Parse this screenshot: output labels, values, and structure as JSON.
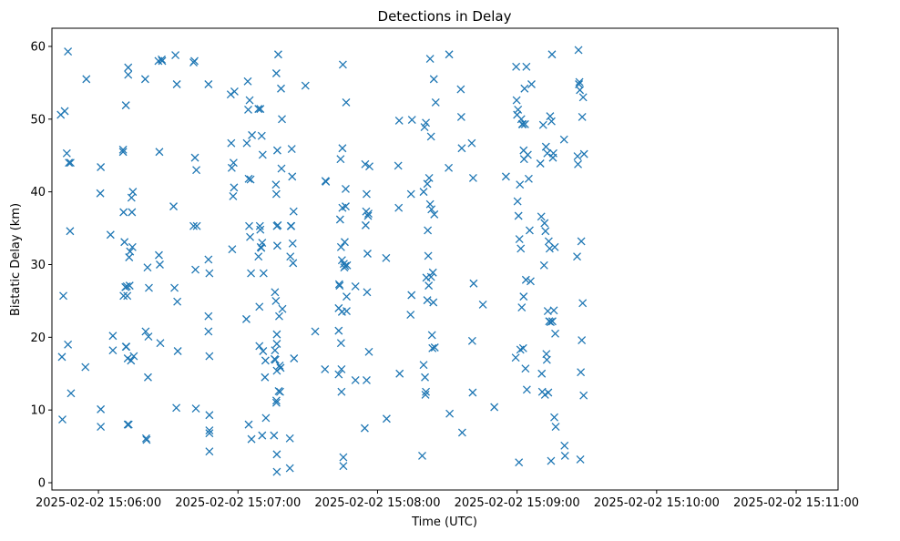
{
  "chart_data": {
    "type": "scatter",
    "title": "Detections in Delay",
    "xlabel": "Time (UTC)",
    "ylabel": "Bistatic Delay (km)",
    "marker": "x",
    "color": "#1f77b4",
    "x_unit": "seconds since 2025-02-02 15:06:00",
    "xlim": [
      -20,
      318
    ],
    "ylim": [
      -1.0,
      62.5
    ],
    "x_ticks": [
      {
        "value": 0,
        "label": "2025-02-02 15:06:00"
      },
      {
        "value": 60,
        "label": "2025-02-02 15:07:00"
      },
      {
        "value": 120,
        "label": "2025-02-02 15:08:00"
      },
      {
        "value": 180,
        "label": "2025-02-02 15:09:00"
      },
      {
        "value": 240,
        "label": "2025-02-02 15:10:00"
      },
      {
        "value": 300,
        "label": "2025-02-02 15:11:00"
      }
    ],
    "y_ticks": [
      {
        "value": 0,
        "label": "0"
      },
      {
        "value": 10,
        "label": "10"
      },
      {
        "value": 20,
        "label": "20"
      },
      {
        "value": 30,
        "label": "30"
      },
      {
        "value": 40,
        "label": "40"
      },
      {
        "value": 50,
        "label": "50"
      },
      {
        "value": 60,
        "label": "60"
      }
    ],
    "points": [
      [
        -16.2,
        50.6
      ],
      [
        -15.7,
        17.3
      ],
      [
        -15.5,
        8.7
      ],
      [
        -15.1,
        25.7
      ],
      [
        -14.5,
        51.1
      ],
      [
        -13.6,
        45.3
      ],
      [
        -13.1,
        59.3
      ],
      [
        -13.1,
        19.0
      ],
      [
        -12.7,
        44.0
      ],
      [
        -12.2,
        34.6
      ],
      [
        -12.0,
        44.0
      ],
      [
        -11.8,
        12.3
      ],
      [
        -5.2,
        55.5
      ],
      [
        -5.6,
        15.9
      ],
      [
        0.8,
        39.8
      ],
      [
        1.0,
        10.1
      ],
      [
        1.0,
        7.7
      ],
      [
        1.0,
        43.4
      ],
      [
        5.2,
        34.1
      ],
      [
        6.2,
        20.2
      ],
      [
        6.2,
        18.2
      ],
      [
        10.6,
        45.5
      ],
      [
        10.6,
        45.8
      ],
      [
        10.8,
        37.2
      ],
      [
        10.8,
        25.7
      ],
      [
        11.2,
        33.1
      ],
      [
        11.6,
        26.9
      ],
      [
        11.8,
        18.7
      ],
      [
        11.8,
        51.9
      ],
      [
        12.0,
        18.7
      ],
      [
        12.2,
        27.0
      ],
      [
        12.4,
        25.7
      ],
      [
        12.6,
        17.1
      ],
      [
        12.6,
        8.0
      ],
      [
        12.8,
        56.1
      ],
      [
        12.8,
        57.1
      ],
      [
        13.0,
        8.0
      ],
      [
        13.2,
        31.0
      ],
      [
        13.4,
        27.1
      ],
      [
        13.6,
        31.8
      ],
      [
        14.0,
        16.8
      ],
      [
        14.2,
        39.2
      ],
      [
        14.4,
        37.2
      ],
      [
        14.6,
        32.4
      ],
      [
        14.8,
        40.0
      ],
      [
        15.2,
        17.4
      ],
      [
        20.1,
        55.5
      ],
      [
        20.3,
        20.8
      ],
      [
        20.5,
        6.1
      ],
      [
        20.7,
        5.9
      ],
      [
        21.1,
        29.6
      ],
      [
        21.3,
        14.5
      ],
      [
        21.5,
        20.1
      ],
      [
        21.7,
        26.8
      ],
      [
        25.8,
        58.0
      ],
      [
        26.0,
        31.3
      ],
      [
        26.2,
        45.5
      ],
      [
        26.4,
        30.0
      ],
      [
        26.6,
        19.2
      ],
      [
        27.2,
        58.2
      ],
      [
        27.4,
        58.0
      ],
      [
        32.3,
        38.0
      ],
      [
        32.7,
        26.8
      ],
      [
        33.1,
        58.8
      ],
      [
        33.5,
        10.3
      ],
      [
        33.7,
        54.8
      ],
      [
        33.9,
        24.9
      ],
      [
        34.1,
        18.1
      ],
      [
        40.9,
        57.8
      ],
      [
        40.9,
        35.3
      ],
      [
        41.3,
        58.0
      ],
      [
        41.5,
        44.7
      ],
      [
        41.7,
        29.3
      ],
      [
        41.9,
        10.2
      ],
      [
        42.1,
        43.0
      ],
      [
        42.3,
        35.3
      ],
      [
        47.3,
        22.9
      ],
      [
        47.3,
        20.8
      ],
      [
        47.3,
        54.8
      ],
      [
        47.3,
        30.7
      ],
      [
        47.7,
        28.8
      ],
      [
        47.7,
        17.4
      ],
      [
        47.7,
        9.3
      ],
      [
        47.7,
        7.2
      ],
      [
        47.7,
        6.8
      ],
      [
        47.7,
        4.3
      ],
      [
        56.9,
        53.4
      ],
      [
        57.1,
        46.7
      ],
      [
        57.3,
        43.3
      ],
      [
        57.5,
        32.1
      ],
      [
        57.9,
        39.4
      ],
      [
        58.1,
        44.0
      ],
      [
        58.3,
        40.6
      ],
      [
        58.5,
        53.8
      ],
      [
        63.6,
        22.5
      ],
      [
        63.8,
        46.7
      ],
      [
        64.2,
        55.2
      ],
      [
        64.4,
        51.3
      ],
      [
        64.6,
        41.8
      ],
      [
        64.6,
        8.0
      ],
      [
        64.8,
        35.3
      ],
      [
        65.0,
        52.6
      ],
      [
        65.2,
        33.8
      ],
      [
        65.4,
        41.7
      ],
      [
        65.6,
        28.8
      ],
      [
        65.8,
        6.0
      ],
      [
        66.0,
        47.8
      ],
      [
        68.8,
        31.1
      ],
      [
        68.8,
        51.4
      ],
      [
        69.2,
        18.8
      ],
      [
        69.2,
        24.2
      ],
      [
        69.4,
        35.3
      ],
      [
        69.6,
        34.8
      ],
      [
        69.6,
        51.4
      ],
      [
        69.8,
        32.4
      ],
      [
        70.0,
        32.3
      ],
      [
        70.2,
        47.7
      ],
      [
        70.4,
        33.0
      ],
      [
        70.4,
        6.5
      ],
      [
        70.6,
        45.1
      ],
      [
        70.8,
        18.1
      ],
      [
        71.0,
        28.8
      ],
      [
        71.6,
        14.5
      ],
      [
        71.8,
        16.8
      ],
      [
        72.0,
        8.9
      ],
      [
        75.5,
        6.5
      ],
      [
        75.7,
        17.0
      ],
      [
        75.9,
        18.2
      ],
      [
        75.9,
        26.2
      ],
      [
        76.1,
        16.9
      ],
      [
        76.3,
        41.0
      ],
      [
        76.3,
        25.0
      ],
      [
        76.5,
        11.0
      ],
      [
        76.5,
        11.3
      ],
      [
        76.5,
        39.7
      ],
      [
        76.5,
        56.3
      ],
      [
        76.7,
        35.3
      ],
      [
        76.7,
        20.4
      ],
      [
        76.7,
        19.1
      ],
      [
        76.7,
        15.4
      ],
      [
        76.7,
        3.9
      ],
      [
        76.7,
        1.5
      ],
      [
        76.9,
        45.7
      ],
      [
        76.9,
        32.6
      ],
      [
        77.1,
        35.4
      ],
      [
        77.3,
        58.9
      ],
      [
        77.5,
        12.6
      ],
      [
        77.7,
        22.9
      ],
      [
        77.9,
        16.1
      ],
      [
        78.1,
        12.5
      ],
      [
        78.3,
        15.8
      ],
      [
        78.5,
        54.2
      ],
      [
        78.7,
        43.2
      ],
      [
        78.9,
        50.0
      ],
      [
        79.1,
        23.9
      ],
      [
        82.3,
        6.1
      ],
      [
        82.3,
        2.0
      ],
      [
        82.5,
        31.1
      ],
      [
        82.7,
        35.3
      ],
      [
        82.9,
        35.3
      ],
      [
        83.1,
        45.9
      ],
      [
        83.3,
        42.1
      ],
      [
        83.5,
        32.9
      ],
      [
        83.7,
        30.2
      ],
      [
        83.9,
        37.3
      ],
      [
        84.1,
        17.1
      ],
      [
        89.0,
        54.6
      ],
      [
        93.2,
        20.8
      ],
      [
        97.4,
        15.6
      ],
      [
        97.6,
        41.5
      ],
      [
        97.8,
        41.4
      ],
      [
        103.3,
        24.0
      ],
      [
        103.3,
        20.9
      ],
      [
        103.3,
        14.9
      ],
      [
        103.5,
        27.3
      ],
      [
        103.7,
        27.1
      ],
      [
        103.9,
        36.2
      ],
      [
        104.1,
        44.5
      ],
      [
        104.3,
        32.4
      ],
      [
        104.3,
        19.2
      ],
      [
        104.5,
        15.6
      ],
      [
        104.5,
        12.5
      ],
      [
        104.7,
        30.6
      ],
      [
        104.7,
        23.5
      ],
      [
        104.9,
        37.8
      ],
      [
        104.9,
        46.0
      ],
      [
        105.1,
        57.5
      ],
      [
        105.3,
        3.5
      ],
      [
        105.3,
        2.3
      ],
      [
        105.5,
        30.1
      ],
      [
        105.7,
        29.6
      ],
      [
        105.9,
        33.1
      ],
      [
        106.1,
        29.8
      ],
      [
        106.3,
        38.0
      ],
      [
        106.3,
        40.4
      ],
      [
        106.5,
        52.3
      ],
      [
        106.7,
        23.6
      ],
      [
        106.7,
        25.6
      ],
      [
        106.9,
        29.9
      ],
      [
        110.5,
        27.0
      ],
      [
        110.5,
        14.1
      ],
      [
        114.5,
        7.5
      ],
      [
        114.7,
        43.8
      ],
      [
        114.9,
        35.4
      ],
      [
        115.1,
        37.3
      ],
      [
        115.3,
        39.7
      ],
      [
        115.3,
        14.1
      ],
      [
        115.5,
        26.2
      ],
      [
        115.7,
        31.5
      ],
      [
        115.9,
        36.7
      ],
      [
        116.1,
        37.0
      ],
      [
        116.3,
        18.0
      ],
      [
        116.5,
        43.5
      ],
      [
        123.7,
        30.9
      ],
      [
        123.9,
        8.8
      ],
      [
        128.9,
        43.6
      ],
      [
        129.1,
        37.8
      ],
      [
        129.3,
        49.8
      ],
      [
        129.5,
        15.0
      ],
      [
        134.2,
        23.1
      ],
      [
        134.4,
        39.7
      ],
      [
        134.6,
        25.8
      ],
      [
        134.8,
        49.9
      ],
      [
        139.2,
        3.7
      ],
      [
        139.8,
        40.0
      ],
      [
        139.8,
        16.2
      ],
      [
        140.2,
        48.9
      ],
      [
        140.4,
        14.5
      ],
      [
        140.6,
        12.1
      ],
      [
        140.8,
        49.5
      ],
      [
        140.8,
        12.5
      ],
      [
        141.0,
        28.2
      ],
      [
        141.4,
        41.1
      ],
      [
        141.4,
        25.1
      ],
      [
        141.6,
        34.7
      ],
      [
        141.8,
        31.2
      ],
      [
        142.0,
        27.1
      ],
      [
        142.2,
        41.9
      ],
      [
        142.6,
        58.3
      ],
      [
        142.6,
        38.3
      ],
      [
        143.0,
        28.3
      ],
      [
        143.0,
        47.6
      ],
      [
        143.2,
        37.6
      ],
      [
        143.4,
        20.3
      ],
      [
        143.6,
        18.5
      ],
      [
        143.8,
        28.9
      ],
      [
        144.0,
        24.8
      ],
      [
        144.2,
        55.5
      ],
      [
        144.4,
        36.9
      ],
      [
        144.6,
        18.6
      ],
      [
        145.0,
        52.3
      ],
      [
        150.6,
        43.3
      ],
      [
        150.8,
        58.9
      ],
      [
        151.0,
        9.5
      ],
      [
        155.8,
        54.1
      ],
      [
        156.0,
        50.3
      ],
      [
        156.2,
        46.0
      ],
      [
        156.4,
        6.9
      ],
      [
        160.5,
        46.7
      ],
      [
        160.7,
        19.5
      ],
      [
        160.9,
        12.4
      ],
      [
        161.1,
        41.9
      ],
      [
        161.3,
        27.4
      ],
      [
        165.3,
        24.5
      ],
      [
        170.2,
        10.4
      ],
      [
        175.2,
        42.1
      ],
      [
        179.4,
        17.2
      ],
      [
        179.6,
        57.2
      ],
      [
        179.8,
        52.6
      ],
      [
        180.0,
        50.6
      ],
      [
        180.2,
        38.7
      ],
      [
        180.4,
        51.3
      ],
      [
        180.6,
        36.7
      ],
      [
        180.8,
        2.8
      ],
      [
        181.0,
        33.5
      ],
      [
        181.2,
        41.0
      ],
      [
        181.4,
        18.3
      ],
      [
        181.6,
        32.2
      ],
      [
        181.8,
        50.0
      ],
      [
        182.0,
        24.1
      ],
      [
        182.2,
        49.3
      ],
      [
        182.4,
        49.3
      ],
      [
        182.6,
        18.5
      ],
      [
        182.8,
        45.7
      ],
      [
        182.8,
        25.6
      ],
      [
        183.0,
        44.5
      ],
      [
        183.2,
        54.2
      ],
      [
        183.4,
        49.3
      ],
      [
        183.6,
        15.7
      ],
      [
        183.8,
        27.9
      ],
      [
        184.0,
        57.2
      ],
      [
        184.2,
        12.8
      ],
      [
        184.6,
        45.1
      ],
      [
        185.0,
        41.8
      ],
      [
        185.4,
        34.7
      ],
      [
        185.8,
        27.7
      ],
      [
        186.2,
        54.8
      ],
      [
        190.0,
        43.9
      ],
      [
        190.4,
        36.6
      ],
      [
        190.6,
        15.0
      ],
      [
        190.8,
        12.5
      ],
      [
        191.2,
        49.2
      ],
      [
        191.6,
        29.9
      ],
      [
        191.8,
        35.7
      ],
      [
        192.0,
        12.1
      ],
      [
        192.2,
        34.6
      ],
      [
        192.4,
        46.2
      ],
      [
        192.6,
        17.7
      ],
      [
        192.8,
        16.9
      ],
      [
        193.0,
        45.3
      ],
      [
        193.2,
        23.6
      ],
      [
        193.4,
        12.4
      ],
      [
        193.6,
        33.2
      ],
      [
        193.8,
        22.2
      ],
      [
        194.0,
        32.2
      ],
      [
        194.2,
        50.4
      ],
      [
        194.4,
        22.1
      ],
      [
        194.6,
        3.0
      ],
      [
        194.8,
        49.7
      ],
      [
        195.0,
        58.9
      ],
      [
        195.2,
        22.2
      ],
      [
        195.4,
        44.7
      ],
      [
        195.6,
        45.3
      ],
      [
        195.8,
        23.7
      ],
      [
        196.0,
        9.0
      ],
      [
        196.2,
        32.4
      ],
      [
        196.4,
        20.5
      ],
      [
        196.6,
        7.7
      ],
      [
        200.2,
        47.2
      ],
      [
        200.4,
        5.1
      ],
      [
        200.6,
        3.7
      ],
      [
        205.8,
        31.1
      ],
      [
        206.0,
        44.9
      ],
      [
        206.2,
        43.8
      ],
      [
        206.4,
        59.5
      ],
      [
        206.6,
        54.8
      ],
      [
        206.8,
        55.1
      ],
      [
        207.0,
        54.0
      ],
      [
        207.2,
        3.2
      ],
      [
        207.4,
        15.2
      ],
      [
        207.6,
        33.2
      ],
      [
        207.8,
        19.6
      ],
      [
        208.0,
        50.3
      ],
      [
        208.2,
        24.7
      ],
      [
        208.4,
        53.0
      ],
      [
        208.6,
        12.0
      ],
      [
        208.8,
        45.2
      ]
    ]
  }
}
